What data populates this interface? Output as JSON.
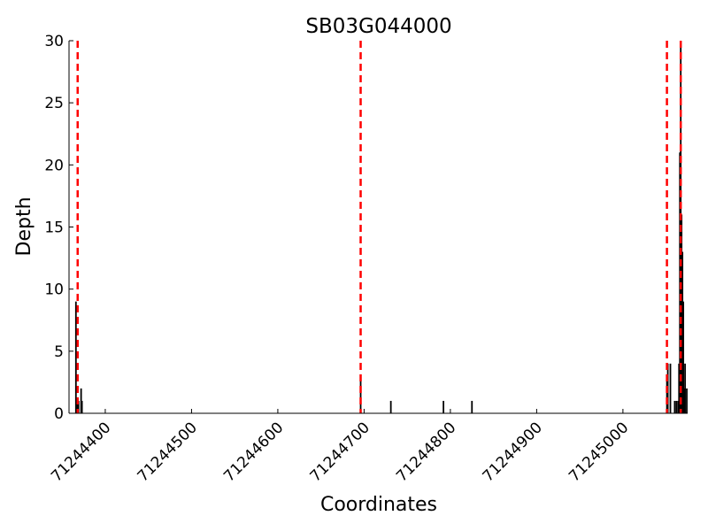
{
  "chart_data": {
    "type": "bar",
    "title": "SB03G044000",
    "xlabel": "Coordinates",
    "ylabel": "Depth",
    "xlim": [
      71244358,
      71245075
    ],
    "ylim": [
      0,
      30
    ],
    "x_ticks": [
      71244400,
      71244500,
      71244600,
      71244700,
      71244800,
      71244900,
      71245000
    ],
    "y_ticks": [
      0,
      5,
      10,
      15,
      20,
      25,
      30
    ],
    "grid": false,
    "legend": "none",
    "bar_color": "#000000",
    "marker_color": "#ff0000",
    "markers": [
      71244368,
      71244696,
      71245051,
      71245067
    ],
    "points": [
      {
        "x": 71244366,
        "y": 9
      },
      {
        "x": 71244367,
        "y": 1
      },
      {
        "x": 71244368,
        "y": 1
      },
      {
        "x": 71244369,
        "y": 1
      },
      {
        "x": 71244372,
        "y": 2
      },
      {
        "x": 71244373,
        "y": 1
      },
      {
        "x": 71244696,
        "y": 3
      },
      {
        "x": 71244731,
        "y": 1
      },
      {
        "x": 71244792,
        "y": 1
      },
      {
        "x": 71244825,
        "y": 1
      },
      {
        "x": 71245051,
        "y": 3
      },
      {
        "x": 71245052,
        "y": 4
      },
      {
        "x": 71245055,
        "y": 4
      },
      {
        "x": 71245060,
        "y": 1
      },
      {
        "x": 71245062,
        "y": 1
      },
      {
        "x": 71245064,
        "y": 1
      },
      {
        "x": 71245065,
        "y": 4
      },
      {
        "x": 71245066,
        "y": 21
      },
      {
        "x": 71245067,
        "y": 30
      },
      {
        "x": 71245068,
        "y": 16
      },
      {
        "x": 71245069,
        "y": 13
      },
      {
        "x": 71245070,
        "y": 9
      },
      {
        "x": 71245071,
        "y": 2
      },
      {
        "x": 71245072,
        "y": 4
      },
      {
        "x": 71245074,
        "y": 2
      }
    ]
  }
}
